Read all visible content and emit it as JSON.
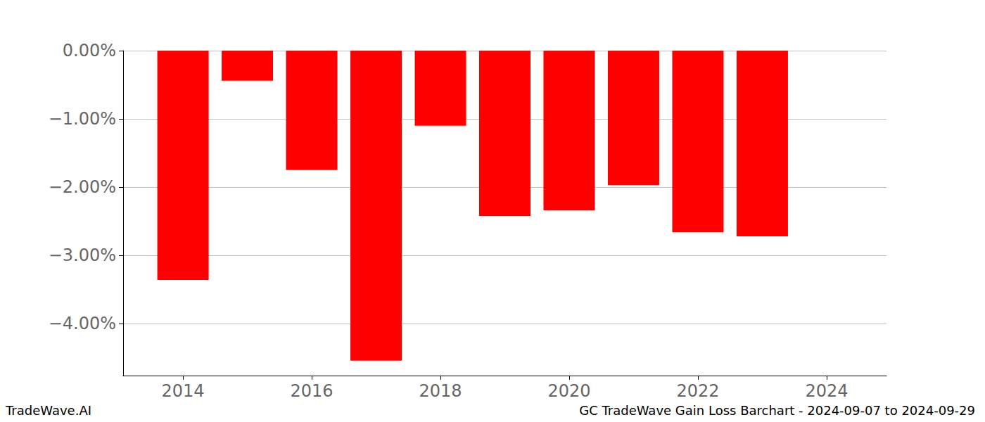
{
  "chart_data": {
    "type": "bar",
    "x": [
      2014,
      2015,
      2016,
      2017,
      2018,
      2019,
      2020,
      2021,
      2022,
      2023
    ],
    "values": [
      -3.36,
      -0.44,
      -1.75,
      -4.54,
      -1.1,
      -2.42,
      -2.34,
      -1.97,
      -2.66,
      -2.72
    ],
    "color": "#ff0000",
    "xlim": [
      2013.07,
      2024.93
    ],
    "xticks": [
      2014,
      2016,
      2018,
      2020,
      2022,
      2024
    ],
    "ylim": [
      -4.76,
      0
    ],
    "yticks": [
      {
        "value": 0,
        "label": "0.00%"
      },
      {
        "value": -1,
        "label": "−1.00%"
      },
      {
        "value": -2,
        "label": "−2.00%"
      },
      {
        "value": -3,
        "label": "−3.00%"
      },
      {
        "value": -4,
        "label": "−4.00%"
      }
    ],
    "grid": true,
    "annotations": [
      "TradeWave.AI",
      "GC TradeWave Gain Loss Barchart - 2024-09-07 to 2024-09-29"
    ]
  }
}
